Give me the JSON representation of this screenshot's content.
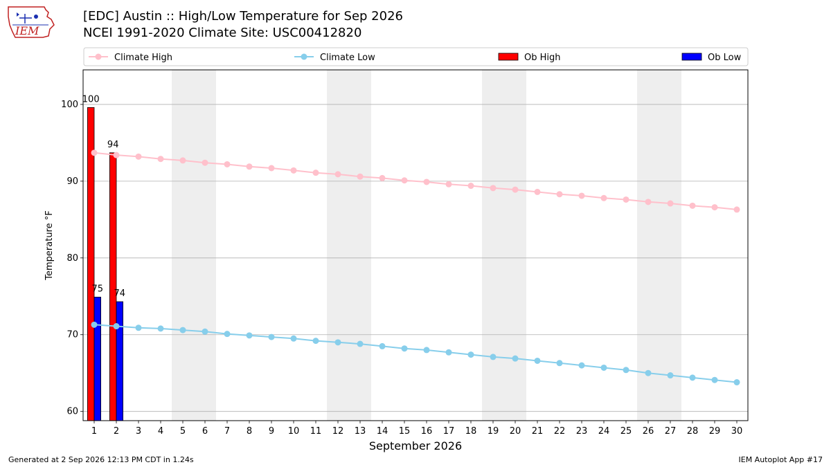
{
  "header": {
    "title_line1": "[EDC] Austin :: High/Low Temperature for Sep 2026",
    "title_line2": "NCEI 1991-2020 Climate Site: USC00412820"
  },
  "logo": {
    "text": "IEM",
    "icon": "iem-iowa-logo-icon"
  },
  "footer": {
    "left": "Generated at 2 Sep 2026 12:13 PM CDT in 1.24s",
    "right": "IEM Autoplot App #17"
  },
  "colors": {
    "climate_high": "#ffc0cb",
    "climate_low": "#87ceeb",
    "ob_high": "#ff0000",
    "ob_low": "#0000ff",
    "weekend_band": "#eeeeee",
    "grid": "#b0b0b0"
  },
  "chart_data": {
    "type": "bar",
    "xlabel": "September 2026",
    "ylabel": "Temperature °F",
    "xlim": [
      0.5,
      30.5
    ],
    "ylim": [
      58.8,
      104.5
    ],
    "yticks": [
      60,
      70,
      80,
      90,
      100
    ],
    "grid": "y",
    "legend_position": "top",
    "x": [
      1,
      2,
      3,
      4,
      5,
      6,
      7,
      8,
      9,
      10,
      11,
      12,
      13,
      14,
      15,
      16,
      17,
      18,
      19,
      20,
      21,
      22,
      23,
      24,
      25,
      26,
      27,
      28,
      29,
      30
    ],
    "weekend_shading": [
      [
        5,
        6
      ],
      [
        12,
        13
      ],
      [
        19,
        20
      ],
      [
        26,
        27
      ]
    ],
    "series": [
      {
        "name": "Climate High",
        "kind": "line",
        "values": [
          93.7,
          93.4,
          93.2,
          92.9,
          92.7,
          92.4,
          92.2,
          91.9,
          91.7,
          91.4,
          91.1,
          90.9,
          90.6,
          90.4,
          90.1,
          89.9,
          89.6,
          89.4,
          89.1,
          88.9,
          88.6,
          88.3,
          88.1,
          87.8,
          87.6,
          87.3,
          87.1,
          86.8,
          86.6,
          86.3
        ]
      },
      {
        "name": "Climate Low",
        "kind": "line",
        "values": [
          71.3,
          71.1,
          70.9,
          70.8,
          70.6,
          70.4,
          70.1,
          69.9,
          69.7,
          69.5,
          69.2,
          69.0,
          68.8,
          68.5,
          68.2,
          68.0,
          67.7,
          67.4,
          67.1,
          66.9,
          66.6,
          66.3,
          66.0,
          65.7,
          65.4,
          65.0,
          64.7,
          64.4,
          64.1,
          63.8
        ]
      },
      {
        "name": "Ob High",
        "kind": "bar",
        "x": [
          1,
          2
        ],
        "values": [
          99.6,
          93.7
        ],
        "labels": [
          "100",
          "94"
        ]
      },
      {
        "name": "Ob Low",
        "kind": "bar",
        "x": [
          1,
          2
        ],
        "values": [
          74.9,
          74.3
        ],
        "labels": [
          "75",
          "74"
        ]
      }
    ]
  }
}
